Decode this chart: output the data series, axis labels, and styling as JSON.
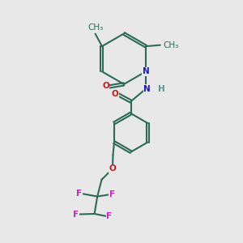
{
  "bg_color": "#e8e8e8",
  "bond_color": "#2d6b58",
  "bond_lw": 1.5,
  "dbl_off": 0.05,
  "N_color": "#1818cc",
  "O_color": "#cc1818",
  "F_color": "#cc22cc",
  "H_color": "#5a9090",
  "font_size": 7.5,
  "fig_size": [
    3.0,
    3.0
  ],
  "dpi": 100,
  "xlim": [
    0,
    10
  ],
  "ylim": [
    0,
    10
  ]
}
